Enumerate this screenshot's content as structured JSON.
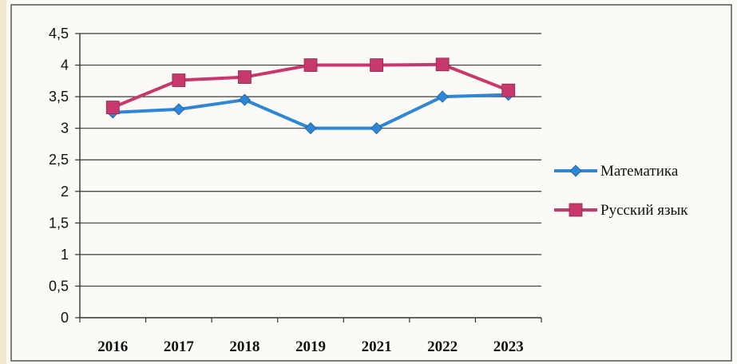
{
  "chart_data": {
    "type": "line",
    "categories": [
      "2016",
      "2017",
      "2018",
      "2019",
      "2021",
      "2022",
      "2023"
    ],
    "series": [
      {
        "name": "Математика",
        "values": [
          3.25,
          3.3,
          3.45,
          3.0,
          3.0,
          3.5,
          3.53
        ],
        "color": "#2e86d6",
        "marker": "diamond"
      },
      {
        "name": "Русский язык",
        "values": [
          3.33,
          3.76,
          3.81,
          4.0,
          4.0,
          4.01,
          3.6
        ],
        "color": "#c8386c",
        "marker": "square"
      }
    ],
    "y_ticks": [
      "0",
      "0,5",
      "1",
      "1,5",
      "2",
      "2,5",
      "3",
      "3,5",
      "4",
      "4,5"
    ],
    "ylim": [
      0,
      4.5
    ],
    "grid": true,
    "legend": "right"
  }
}
